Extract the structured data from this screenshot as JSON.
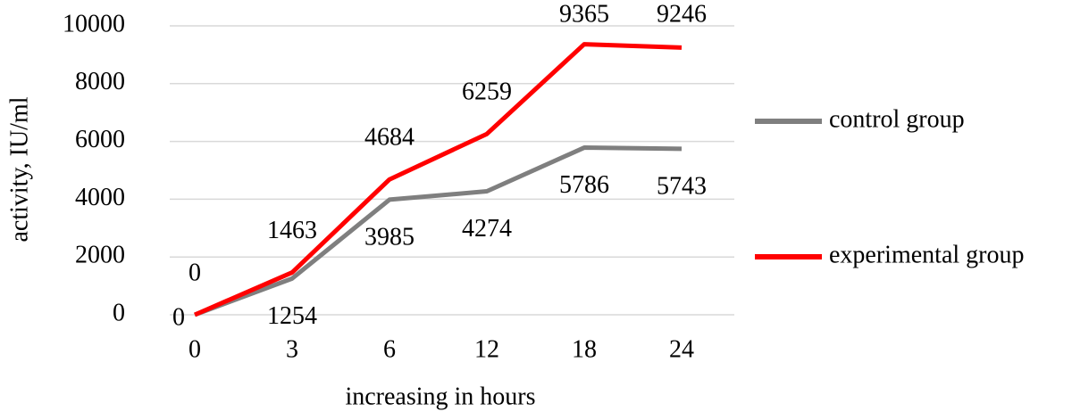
{
  "chart_data": {
    "type": "line",
    "x_label": "increasing in hours",
    "y_label": "activity, IU/ml",
    "categories": [
      "0",
      "3",
      "6",
      "12",
      "18",
      "24"
    ],
    "series": [
      {
        "name": "control group",
        "color": "#7f7f7f",
        "values": [
          0,
          1254,
          3985,
          4274,
          5786,
          5743
        ]
      },
      {
        "name": "experimental group",
        "color": "#ff0000",
        "values": [
          0,
          1463,
          4684,
          6259,
          9365,
          9246
        ]
      }
    ],
    "ylim": [
      0,
      10000
    ],
    "yticks": [
      0,
      2000,
      4000,
      6000,
      8000,
      10000
    ],
    "grid": true,
    "legend": "right"
  }
}
